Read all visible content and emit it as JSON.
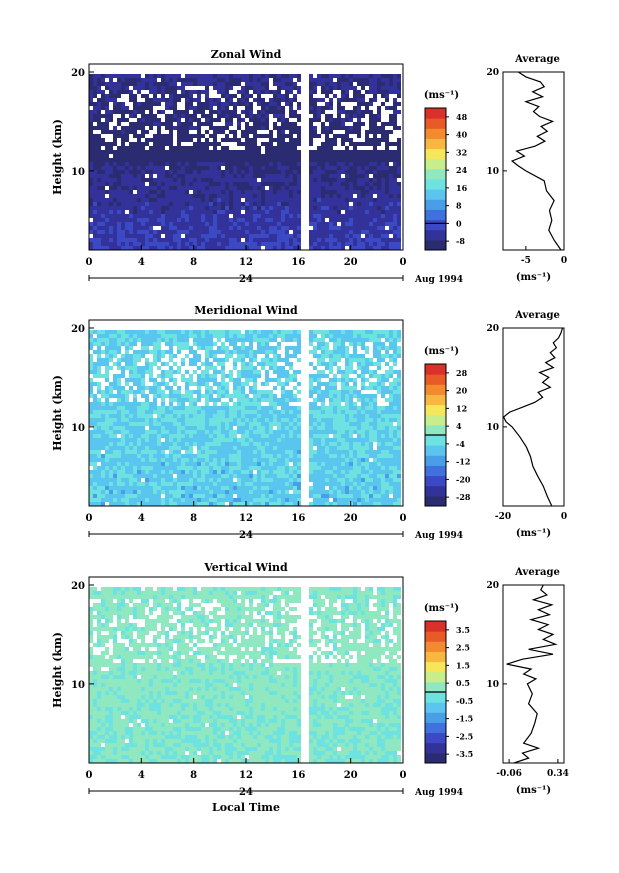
{
  "chart_data": [
    {
      "type": "heatmap",
      "title": "Zonal Wind",
      "ylabel": "Height (km)",
      "yticks": [
        "10",
        "20"
      ],
      "ylim": [
        2,
        20
      ],
      "xticks": [
        "0",
        "4",
        "8",
        "12",
        "16",
        "20",
        "0"
      ],
      "date_tick": "24",
      "date_label": "Aug 1994",
      "colorbar": {
        "unit": "(ms⁻¹)",
        "ticks": [
          "-8",
          "0",
          "8",
          "16",
          "24",
          "32",
          "40",
          "48"
        ],
        "range": [
          -12,
          52
        ]
      },
      "field": {
        "low_alt_value": -2,
        "high_alt_value": -12,
        "jet_height_km": 11,
        "noise": 3
      },
      "average": {
        "title": "Average",
        "xticks": [
          "-5",
          "0"
        ],
        "xlim": [
          -8,
          0
        ],
        "xlabel": "(ms⁻¹)",
        "yticks": [
          "10",
          "20"
        ],
        "heights": [
          2.0,
          3.0,
          4.0,
          5.0,
          6.0,
          7.0,
          8.0,
          9.0,
          10.0,
          10.5,
          11.0,
          11.5,
          12.0,
          12.5,
          13.0,
          13.5,
          14.0,
          14.5,
          15.0,
          15.5,
          16.0,
          16.5,
          17.0,
          17.5,
          18.0,
          18.5,
          19.0,
          19.5,
          20.0
        ],
        "values": [
          -0.4,
          -1.3,
          -2.0,
          -1.6,
          -1.9,
          -1.3,
          -2.3,
          -2.6,
          -5.0,
          -6.0,
          -6.8,
          -5.2,
          -6.2,
          -3.8,
          -2.5,
          -3.5,
          -2.2,
          -3.0,
          -1.5,
          -3.2,
          -4.0,
          -3.3,
          -5.0,
          -2.8,
          -4.1,
          -2.6,
          -3.1,
          -5.0,
          -6.0
        ]
      }
    },
    {
      "type": "heatmap",
      "title": "Meridional Wind",
      "ylabel": "Height (km)",
      "yticks": [
        "10",
        "20"
      ],
      "ylim": [
        2,
        20
      ],
      "xticks": [
        "0",
        "4",
        "8",
        "12",
        "16",
        "20",
        "0"
      ],
      "date_tick": "24",
      "date_label": "Aug 1994",
      "colorbar": {
        "unit": "(ms⁻¹)",
        "ticks": [
          "-28",
          "-20",
          "-12",
          "-4",
          "4",
          "12",
          "20",
          "28"
        ],
        "range": [
          -32,
          32
        ]
      },
      "field": {
        "low_alt_value": -6,
        "high_alt_value": -4,
        "jet_height_km": 10,
        "noise": 4
      },
      "average": {
        "title": "Average",
        "xticks": [
          "-20",
          "0"
        ],
        "xlim": [
          -20,
          0
        ],
        "xlabel": "(ms⁻¹)",
        "yticks": [
          "10",
          "20"
        ],
        "heights": [
          2.0,
          3.0,
          4.0,
          5.0,
          6.0,
          7.0,
          8.0,
          9.0,
          10.0,
          10.5,
          11.0,
          11.5,
          12.0,
          12.5,
          13.0,
          13.5,
          14.0,
          14.5,
          15.0,
          15.5,
          16.0,
          16.5,
          17.0,
          17.5,
          18.0,
          18.5,
          19.0,
          19.5,
          20.0
        ],
        "values": [
          -4.0,
          -5.5,
          -6.8,
          -8.6,
          -10.2,
          -11.0,
          -12.4,
          -14.5,
          -17.0,
          -19.0,
          -19.8,
          -17.8,
          -13.5,
          -9.5,
          -7.0,
          -8.5,
          -4.5,
          -7.0,
          -5.0,
          -8.0,
          -3.5,
          -6.0,
          -3.0,
          -4.5,
          -2.5,
          -3.5,
          -1.8,
          -1.0,
          -0.5
        ]
      }
    },
    {
      "type": "heatmap",
      "title": "Vertical Wind",
      "ylabel": "Height (km)",
      "yticks": [
        "10",
        "20"
      ],
      "ylim": [
        2,
        20
      ],
      "xticks": [
        "0",
        "4",
        "8",
        "12",
        "16",
        "20",
        "0"
      ],
      "date_tick": "24",
      "date_label": "Aug 1994",
      "xlabel": "Local Time",
      "colorbar": {
        "unit": "(ms⁻¹)",
        "ticks": [
          "-3.5",
          "-2.5",
          "-1.5",
          "-0.5",
          "0.5",
          "1.5",
          "2.5",
          "3.5"
        ],
        "range": [
          -4,
          4
        ]
      },
      "field": {
        "low_alt_value": 0.0,
        "high_alt_value": 0.2,
        "jet_height_km": 12,
        "noise": 0.25
      },
      "average": {
        "title": "Average",
        "xticks": [
          "-0.06",
          "0.34"
        ],
        "xlim": [
          -0.11,
          0.39
        ],
        "xlabel": "(ms⁻¹)",
        "yticks": [
          "10",
          "20"
        ],
        "heights": [
          2.0,
          2.5,
          3.0,
          3.5,
          4.0,
          5.0,
          6.0,
          7.0,
          8.0,
          9.0,
          10.0,
          10.5,
          11.0,
          11.5,
          12.0,
          12.5,
          13.0,
          13.5,
          14.0,
          14.5,
          15.0,
          15.5,
          16.0,
          16.5,
          17.0,
          17.5,
          18.0,
          18.5,
          19.0,
          19.5,
          20.0
        ],
        "values": [
          -0.02,
          0.1,
          0.05,
          0.18,
          0.06,
          0.12,
          0.15,
          0.17,
          0.1,
          0.13,
          0.09,
          0.16,
          0.06,
          0.12,
          -0.08,
          0.05,
          0.3,
          0.1,
          0.32,
          0.22,
          0.3,
          0.18,
          0.26,
          0.12,
          0.27,
          0.18,
          0.29,
          0.14,
          0.25,
          0.2,
          0.22
        ]
      }
    }
  ]
}
